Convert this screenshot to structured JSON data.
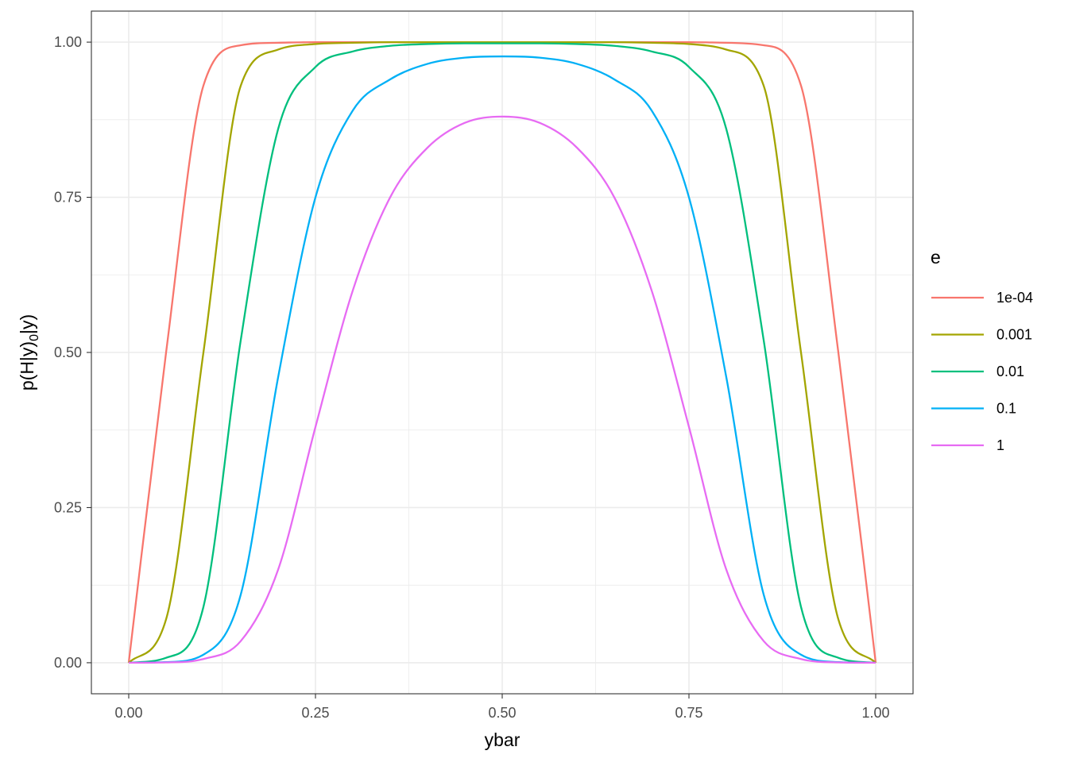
{
  "chart_data": {
    "type": "line",
    "xlabel": "ybar",
    "ylabel": "p(H|y)",
    "ylabel_subscript": "0",
    "ylabel_tail": "|y)",
    "xlim": [
      -0.05,
      1.05
    ],
    "ylim": [
      -0.05,
      1.05
    ],
    "x_ticks": [
      0,
      0.25,
      0.5,
      0.75,
      1
    ],
    "x_tick_labels": [
      "0.00",
      "0.25",
      "0.50",
      "0.75",
      "1.00"
    ],
    "y_ticks": [
      0,
      0.25,
      0.5,
      0.75,
      1
    ],
    "y_tick_labels": [
      "0.00",
      "0.25",
      "0.50",
      "0.75",
      "1.00"
    ],
    "grid": true,
    "legend": {
      "title": "e",
      "position": "right"
    },
    "x": [
      0,
      0.05,
      0.1,
      0.15,
      0.2,
      0.25,
      0.3,
      0.35,
      0.4,
      0.45,
      0.5,
      0.55,
      0.6,
      0.65,
      0.7,
      0.75,
      0.8,
      0.85,
      0.9,
      0.95,
      1
    ],
    "series": [
      {
        "name": "1e-04",
        "color": "#F8766D",
        "values": [
          0,
          0.5,
          0.93,
          0.995,
          0.999,
          1,
          1,
          1,
          1,
          1,
          1,
          1,
          1,
          1,
          1,
          1,
          0.999,
          0.995,
          0.93,
          0.5,
          0
        ]
      },
      {
        "name": "0.001",
        "color": "#A3A500",
        "values": [
          0,
          0.07,
          0.5,
          0.93,
          0.988,
          0.997,
          0.999,
          1,
          1,
          1,
          1,
          1,
          1,
          1,
          0.999,
          0.997,
          0.988,
          0.93,
          0.5,
          0.07,
          0
        ]
      },
      {
        "name": "0.01",
        "color": "#00BF7D",
        "values": [
          0,
          0.008,
          0.09,
          0.52,
          0.86,
          0.96,
          0.985,
          0.994,
          0.997,
          0.998,
          0.998,
          0.998,
          0.997,
          0.994,
          0.985,
          0.96,
          0.86,
          0.52,
          0.09,
          0.008,
          0
        ]
      },
      {
        "name": "0.1",
        "color": "#00B0F6",
        "values": [
          0,
          0.001,
          0.013,
          0.11,
          0.46,
          0.75,
          0.89,
          0.94,
          0.965,
          0.975,
          0.977,
          0.975,
          0.965,
          0.94,
          0.89,
          0.75,
          0.46,
          0.11,
          0.013,
          0.001,
          0
        ]
      },
      {
        "name": "1",
        "color": "#E76BF3",
        "values": [
          0,
          0.0005,
          0.006,
          0.035,
          0.15,
          0.38,
          0.6,
          0.75,
          0.83,
          0.87,
          0.88,
          0.87,
          0.83,
          0.75,
          0.6,
          0.38,
          0.15,
          0.035,
          0.006,
          0.0005,
          0
        ]
      }
    ]
  }
}
